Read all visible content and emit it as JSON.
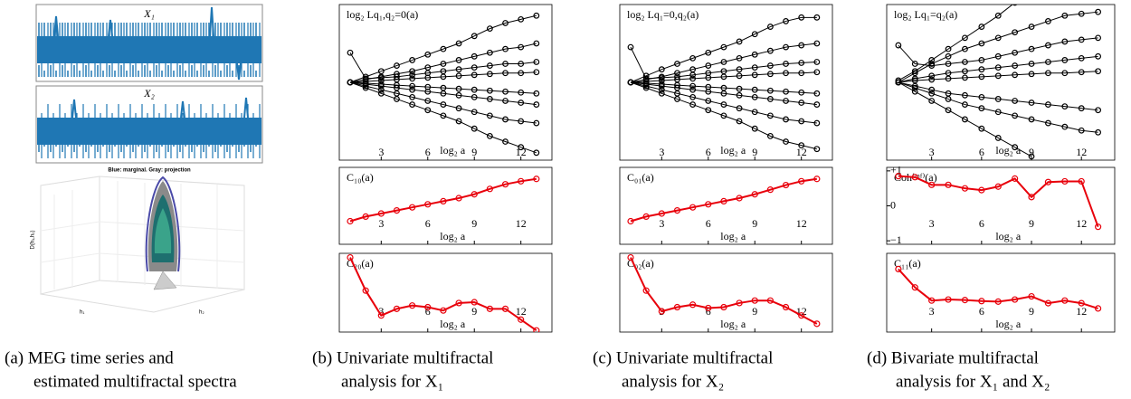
{
  "panel_a": {
    "series_labels": [
      "X₁",
      "X₂"
    ],
    "plot3d_title": "Blue: marginal. Gray: projection",
    "plot3d_axes": [
      "D(h₁,h₂)",
      "h₁",
      "h₂"
    ]
  },
  "captions": [
    [
      "(a) MEG time series and",
      "estimated multifractal spectra"
    ],
    [
      "(b) Univariate multifractal",
      "analysis for X₁"
    ],
    [
      "(c) Univariate multifractal",
      "analysis for X₂"
    ],
    [
      "(d) Bivariate multifractal",
      "analysis for X₁ and X₂"
    ]
  ],
  "chart_data": [
    {
      "type": "line",
      "title": "log₂ Lq₁,q₂=0(a)",
      "xlabel": "log₂ a",
      "x": [
        1,
        2,
        3,
        4,
        5,
        6,
        7,
        8,
        9,
        10,
        11,
        12,
        13
      ],
      "xlim": [
        0.3,
        14
      ],
      "xticks": [
        3,
        6,
        9,
        12
      ],
      "ylim": [
        -4.2,
        4.2
      ],
      "series": [
        {
          "color": "#000000",
          "values": [
            0,
            0.3,
            0.6,
            0.9,
            1.2,
            1.5,
            1.8,
            2.1,
            2.5,
            2.9,
            3.2,
            3.4,
            3.6
          ]
        },
        {
          "color": "#000000",
          "values": [
            0,
            0.15,
            0.3,
            0.45,
            0.6,
            0.8,
            1.0,
            1.2,
            1.4,
            1.6,
            1.8,
            1.9,
            2.1
          ]
        },
        {
          "color": "#000000",
          "values": [
            1.6,
            0.2,
            0.25,
            0.3,
            0.4,
            0.5,
            0.6,
            0.7,
            0.8,
            0.9,
            1.0,
            1.0,
            1.1
          ]
        },
        {
          "color": "#000000",
          "values": [
            0,
            0.05,
            0.1,
            0.15,
            0.2,
            0.25,
            0.3,
            0.35,
            0.4,
            0.45,
            0.5,
            0.5,
            0.55
          ]
        },
        {
          "color": "#000000",
          "values": [
            0,
            -0.05,
            -0.1,
            -0.15,
            -0.2,
            -0.25,
            -0.3,
            -0.35,
            -0.4,
            -0.45,
            -0.5,
            -0.55,
            -0.6
          ]
        },
        {
          "color": "#000000",
          "values": [
            0,
            -0.1,
            -0.2,
            -0.3,
            -0.4,
            -0.5,
            -0.6,
            -0.7,
            -0.8,
            -0.9,
            -1.0,
            -1.1,
            -1.2
          ]
        },
        {
          "color": "#000000",
          "values": [
            0,
            -0.2,
            -0.4,
            -0.6,
            -0.8,
            -1.0,
            -1.2,
            -1.4,
            -1.6,
            -1.8,
            -2.0,
            -2.1,
            -2.2
          ]
        },
        {
          "color": "#000000",
          "values": [
            0,
            -0.3,
            -0.6,
            -0.9,
            -1.2,
            -1.5,
            -1.8,
            -2.1,
            -2.5,
            -2.9,
            -3.2,
            -3.5,
            -3.8
          ]
        }
      ]
    },
    {
      "type": "line",
      "title": "C₁₀(a)",
      "xlabel": "log₂ a",
      "x": [
        1,
        2,
        3,
        4,
        5,
        6,
        7,
        8,
        9,
        10,
        11,
        12,
        13
      ],
      "xlim": [
        0.3,
        14
      ],
      "xticks": [
        3,
        6,
        9,
        12
      ],
      "ylim": [
        0,
        1
      ],
      "series": [
        {
          "color": "#e8000b",
          "values": [
            0.3,
            0.36,
            0.4,
            0.44,
            0.48,
            0.52,
            0.56,
            0.6,
            0.65,
            0.72,
            0.78,
            0.82,
            0.85
          ]
        }
      ]
    },
    {
      "type": "line",
      "title": "C₂₀(a)",
      "xlabel": "log₂ a",
      "x": [
        1,
        2,
        3,
        4,
        5,
        6,
        7,
        8,
        9,
        10,
        11,
        12,
        13
      ],
      "xlim": [
        0.3,
        14
      ],
      "xticks": [
        3,
        6,
        9,
        12
      ],
      "ylim": [
        0.1,
        1.05
      ],
      "series": [
        {
          "color": "#e8000b",
          "values": [
            1.0,
            0.6,
            0.3,
            0.38,
            0.42,
            0.4,
            0.36,
            0.45,
            0.46,
            0.38,
            0.38,
            0.25,
            0.12
          ]
        }
      ]
    },
    {
      "type": "line",
      "title": "log₂ Lq₁=0,q₂(a)",
      "xlabel": "log₂ a",
      "x": [
        1,
        2,
        3,
        4,
        5,
        6,
        7,
        8,
        9,
        10,
        11,
        12,
        13
      ],
      "xlim": [
        0.3,
        14
      ],
      "xticks": [
        3,
        6,
        9,
        12
      ],
      "ylim": [
        -4.2,
        4.2
      ],
      "series": [
        {
          "color": "#000000",
          "values": [
            0,
            0.35,
            0.7,
            1.0,
            1.3,
            1.6,
            1.9,
            2.2,
            2.6,
            3.0,
            3.3,
            3.5,
            3.5
          ]
        },
        {
          "color": "#000000",
          "values": [
            0,
            0.15,
            0.3,
            0.5,
            0.7,
            0.9,
            1.1,
            1.3,
            1.5,
            1.7,
            1.9,
            2.0,
            2.1
          ]
        },
        {
          "color": "#000000",
          "values": [
            1.9,
            0.2,
            0.25,
            0.3,
            0.4,
            0.5,
            0.6,
            0.7,
            0.8,
            0.9,
            1.0,
            1.05,
            1.1
          ]
        },
        {
          "color": "#000000",
          "values": [
            0,
            0.05,
            0.1,
            0.15,
            0.2,
            0.25,
            0.3,
            0.35,
            0.4,
            0.45,
            0.5,
            0.5,
            0.55
          ]
        },
        {
          "color": "#000000",
          "values": [
            0,
            -0.05,
            -0.1,
            -0.15,
            -0.2,
            -0.25,
            -0.3,
            -0.35,
            -0.4,
            -0.45,
            -0.5,
            -0.55,
            -0.6
          ]
        },
        {
          "color": "#000000",
          "values": [
            0,
            -0.1,
            -0.2,
            -0.3,
            -0.4,
            -0.5,
            -0.6,
            -0.7,
            -0.8,
            -0.9,
            -1.0,
            -1.1,
            -1.2
          ]
        },
        {
          "color": "#000000",
          "values": [
            0,
            -0.2,
            -0.4,
            -0.6,
            -0.8,
            -1.0,
            -1.2,
            -1.4,
            -1.6,
            -1.8,
            -2.0,
            -2.1,
            -2.2
          ]
        },
        {
          "color": "#000000",
          "values": [
            0,
            -0.3,
            -0.6,
            -0.9,
            -1.2,
            -1.5,
            -1.8,
            -2.1,
            -2.5,
            -2.9,
            -3.2,
            -3.4,
            -3.6
          ]
        }
      ]
    },
    {
      "type": "line",
      "title": "C₀₁(a)",
      "xlabel": "log₂ a",
      "x": [
        1,
        2,
        3,
        4,
        5,
        6,
        7,
        8,
        9,
        10,
        11,
        12,
        13
      ],
      "xlim": [
        0.3,
        14
      ],
      "xticks": [
        3,
        6,
        9,
        12
      ],
      "ylim": [
        0,
        1
      ],
      "series": [
        {
          "color": "#e8000b",
          "values": [
            0.3,
            0.36,
            0.4,
            0.44,
            0.48,
            0.52,
            0.56,
            0.6,
            0.65,
            0.71,
            0.77,
            0.82,
            0.85
          ]
        }
      ]
    },
    {
      "type": "line",
      "title": "C₀₂(a)",
      "xlabel": "log₂ a",
      "x": [
        1,
        2,
        3,
        4,
        5,
        6,
        7,
        8,
        9,
        10,
        11,
        12,
        13
      ],
      "xlim": [
        0.3,
        14
      ],
      "xticks": [
        3,
        6,
        9,
        12
      ],
      "ylim": [
        0.1,
        1.05
      ],
      "series": [
        {
          "color": "#e8000b",
          "values": [
            1.0,
            0.6,
            0.35,
            0.4,
            0.43,
            0.39,
            0.4,
            0.45,
            0.48,
            0.48,
            0.4,
            0.3,
            0.2
          ]
        }
      ]
    },
    {
      "type": "line",
      "title": "log₂ Lq₁=q₂(a)",
      "xlabel": "log₂ a",
      "x": [
        1,
        2,
        3,
        4,
        5,
        6,
        7,
        8,
        9,
        10,
        11,
        12,
        13
      ],
      "xlim": [
        0.3,
        14
      ],
      "xticks": [
        3,
        6,
        9,
        12
      ],
      "ylim": [
        -4.2,
        4.2
      ],
      "series": [
        {
          "color": "#000000",
          "values": [
            0.1,
            0.6,
            1.2,
            1.8,
            2.4,
            3.0,
            3.6,
            4.3,
            5.0,
            null,
            null,
            null,
            null
          ]
        },
        {
          "color": "#000000",
          "values": [
            0,
            0.5,
            1.0,
            1.4,
            1.8,
            2.1,
            2.4,
            2.7,
            3.0,
            3.3,
            3.6,
            3.7,
            3.8
          ]
        },
        {
          "color": "#000000",
          "values": [
            2.0,
            1.0,
            0.9,
            1.0,
            1.1,
            1.2,
            1.4,
            1.6,
            1.8,
            2.0,
            2.2,
            2.3,
            2.4
          ]
        },
        {
          "color": "#000000",
          "values": [
            0,
            0.2,
            0.35,
            0.5,
            0.6,
            0.7,
            0.8,
            0.9,
            1.0,
            1.1,
            1.2,
            1.3,
            1.4
          ]
        },
        {
          "color": "#000000",
          "values": [
            0,
            0.1,
            0.15,
            0.2,
            0.25,
            0.3,
            0.35,
            0.4,
            0.45,
            0.5,
            0.5,
            0.55,
            0.6
          ]
        },
        {
          "color": "#000000",
          "values": [
            0,
            -0.2,
            -0.4,
            -0.6,
            -0.7,
            -0.8,
            -0.9,
            -1.0,
            -1.1,
            -1.2,
            -1.3,
            -1.4,
            -1.5
          ]
        },
        {
          "color": "#000000",
          "values": [
            0,
            -0.3,
            -0.6,
            -0.9,
            -1.2,
            -1.4,
            -1.6,
            -1.8,
            -2.0,
            -2.2,
            -2.4,
            -2.6,
            -2.7
          ]
        },
        {
          "color": "#000000",
          "values": [
            0,
            -0.5,
            -1.0,
            -1.5,
            -2.0,
            -2.5,
            -3.0,
            -3.5,
            -4.0,
            null,
            null,
            null,
            null
          ]
        }
      ]
    },
    {
      "type": "line",
      "title": "Coh⁽ᵐᶠ⁾(a)",
      "xlabel": "log₂ a",
      "x": [
        1,
        2,
        3,
        4,
        5,
        6,
        7,
        8,
        9,
        10,
        11,
        12,
        13
      ],
      "xlim": [
        0.3,
        14
      ],
      "xticks": [
        3,
        6,
        9,
        12
      ],
      "ylim": [
        -1.1,
        1.1
      ],
      "yticks": [
        {
          "value": 1,
          "label": "+1"
        },
        0,
        {
          "value": -1,
          "label": "−1"
        }
      ],
      "series": [
        {
          "color": "#e8000b",
          "values": [
            0.85,
            0.82,
            0.6,
            0.6,
            0.5,
            0.45,
            0.55,
            0.78,
            0.25,
            0.68,
            0.7,
            0.7,
            -0.6
          ]
        }
      ]
    },
    {
      "type": "line",
      "title": "C₁₁(a)",
      "xlabel": "log₂ a",
      "x": [
        1,
        2,
        3,
        4,
        5,
        6,
        7,
        8,
        9,
        10,
        11,
        12,
        13
      ],
      "xlim": [
        0.3,
        14
      ],
      "xticks": [
        3,
        6,
        9,
        12
      ],
      "ylim": [
        -0.4,
        1.1
      ],
      "series": [
        {
          "color": "#e8000b",
          "values": [
            0.8,
            0.45,
            0.2,
            0.22,
            0.21,
            0.19,
            0.18,
            0.22,
            0.28,
            0.15,
            0.2,
            0.15,
            0.05
          ]
        }
      ]
    }
  ]
}
